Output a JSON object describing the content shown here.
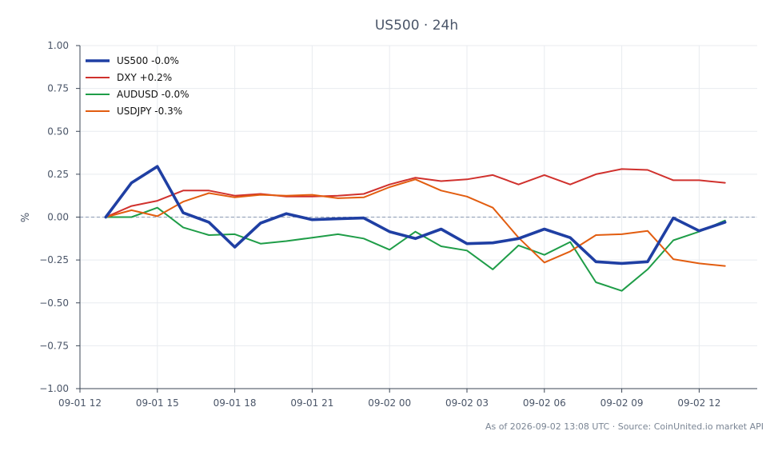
{
  "chart_data": {
    "type": "line",
    "title": "US500 · 24h",
    "xlabel": "",
    "ylabel": "%",
    "ylim": [
      -1.0,
      1.0
    ],
    "y_ticks": [
      -1.0,
      -0.75,
      -0.5,
      -0.25,
      0.0,
      0.25,
      0.5,
      0.75,
      1.0
    ],
    "y_tick_labels": [
      "−1.00",
      "−0.75",
      "−0.50",
      "−0.25",
      "0.00",
      "0.25",
      "0.50",
      "0.75",
      "1.00"
    ],
    "x_ticks": [
      "09-01 12",
      "09-01 15",
      "09-01 18",
      "09-01 21",
      "09-02 00",
      "09-02 03",
      "09-02 06",
      "09-02 09",
      "09-02 12"
    ],
    "x_range_hours": [
      "09-01 12:00",
      "09-02 14:15"
    ],
    "x": [
      "09-01 13",
      "09-01 14",
      "09-01 15",
      "09-01 16",
      "09-01 17",
      "09-01 18",
      "09-01 19",
      "09-01 20",
      "09-01 21",
      "09-01 22",
      "09-01 23",
      "09-02 00",
      "09-02 01",
      "09-02 02",
      "09-02 03",
      "09-02 04",
      "09-02 05",
      "09-02 06",
      "09-02 07",
      "09-02 08",
      "09-02 09",
      "09-02 10",
      "09-02 11",
      "09-02 12",
      "09-02 13"
    ],
    "grid": true,
    "zero_line": true,
    "legend_position": "top-left",
    "series": [
      {
        "name": "US500 -0.0%",
        "color": "#1f3fa3",
        "emphasis": true,
        "values": [
          0.0,
          0.2,
          0.295,
          0.025,
          -0.03,
          -0.175,
          -0.035,
          0.02,
          -0.015,
          -0.01,
          -0.005,
          -0.085,
          -0.125,
          -0.07,
          -0.155,
          -0.15,
          -0.125,
          -0.07,
          -0.12,
          -0.26,
          -0.27,
          -0.26,
          -0.005,
          -0.08,
          -0.03
        ]
      },
      {
        "name": "DXY +0.2%",
        "color": "#d0312d",
        "values": [
          0.0,
          0.065,
          0.095,
          0.155,
          0.155,
          0.125,
          0.135,
          0.12,
          0.12,
          0.125,
          0.135,
          0.19,
          0.23,
          0.21,
          0.22,
          0.245,
          0.19,
          0.245,
          0.19,
          0.25,
          0.28,
          0.275,
          0.215,
          0.215,
          0.2
        ]
      },
      {
        "name": "AUDUSD -0.0%",
        "color": "#1f9d48",
        "values": [
          0.0,
          0.0,
          0.055,
          -0.06,
          -0.105,
          -0.1,
          -0.155,
          -0.14,
          -0.12,
          -0.1,
          -0.125,
          -0.19,
          -0.085,
          -0.17,
          -0.195,
          -0.305,
          -0.165,
          -0.22,
          -0.145,
          -0.38,
          -0.43,
          -0.305,
          -0.135,
          -0.085,
          -0.02
        ]
      },
      {
        "name": "USDJPY -0.3%",
        "color": "#e25d10",
        "values": [
          0.0,
          0.04,
          0.005,
          0.09,
          0.14,
          0.115,
          0.13,
          0.125,
          0.13,
          0.11,
          0.115,
          0.175,
          0.22,
          0.155,
          0.12,
          0.055,
          -0.12,
          -0.265,
          -0.2,
          -0.105,
          -0.1,
          -0.08,
          -0.245,
          -0.27,
          -0.285
        ]
      }
    ]
  },
  "footer": "As of 2026-09-02 13:08 UTC · Source: CoinUnited.io market API"
}
